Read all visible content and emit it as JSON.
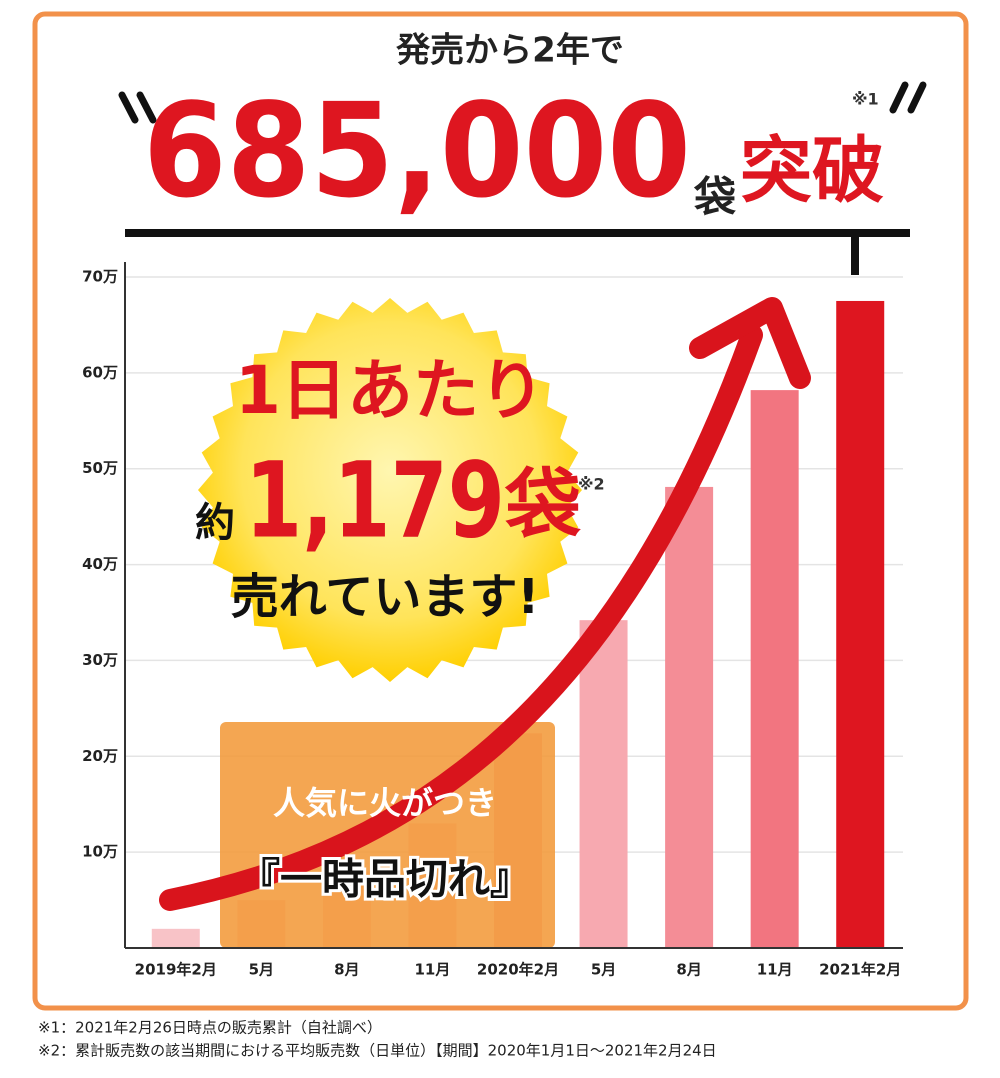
{
  "header": {
    "lead": "発売から2年で",
    "number": "685,000",
    "unit": "袋",
    "verb": "突破",
    "note": "※1"
  },
  "badge": {
    "line1": "1日あたり",
    "approx": "約",
    "number": "1,179",
    "unit": "袋",
    "note": "※2",
    "line3": "売れています!"
  },
  "callout": {
    "line1": "人気に火がつき",
    "line2": "『一時品切れ』"
  },
  "chart_data": {
    "type": "bar",
    "categories": [
      "2019年2月",
      "5月",
      "8月",
      "11月",
      "2020年2月",
      "5月",
      "8月",
      "11月",
      "2021年2月"
    ],
    "values": [
      2,
      5,
      8,
      13,
      22.4,
      34.2,
      48.1,
      58.2,
      67.5
    ],
    "colors": [
      "#f8c3c7",
      "#f8c3c7",
      "#f8c3c7",
      "#f8c3c7",
      "#f7a9b0",
      "#f7a9b0",
      "#f48d96",
      "#f27580",
      "#de1620"
    ],
    "ylim": [
      0,
      70
    ],
    "yticks": [
      {
        "value": 10,
        "label": "10万"
      },
      {
        "value": 20,
        "label": "20万"
      },
      {
        "value": 30,
        "label": "30万"
      },
      {
        "value": 40,
        "label": "40万"
      },
      {
        "value": 50,
        "label": "50万"
      },
      {
        "value": 60,
        "label": "60万"
      },
      {
        "value": 70,
        "label": "70万"
      }
    ],
    "grid": true
  },
  "footnotes": [
    "※1：2021年2月26日時点の販売累計（自社調べ）",
    "※2：累計販売数の該当期間における平均販売数（日単位）【期間】2020年1月1日～2021年2月24日"
  ]
}
